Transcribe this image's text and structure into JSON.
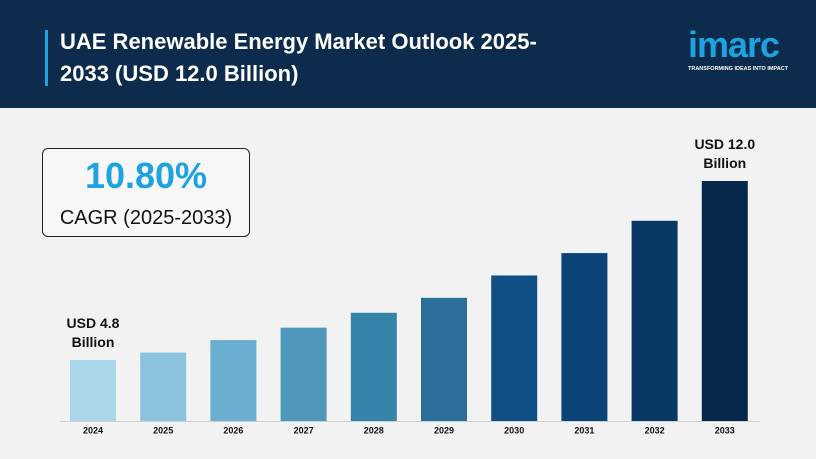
{
  "header": {
    "title": "UAE Renewable Energy Market Outlook 2025-2033 (USD 12.0 Billion)",
    "logo": "imarc",
    "tagline": "TRANSFORMING IDEAS INTO IMPACT"
  },
  "chart_data": {
    "type": "bar",
    "cagr": "10.80%",
    "cagr_label": "CAGR (2025-2033)",
    "categories": [
      "2024",
      "2025",
      "2026",
      "2027",
      "2028",
      "2029",
      "2030",
      "2031",
      "2032",
      "2033"
    ],
    "values": [
      4.8,
      5.1,
      5.6,
      6.1,
      6.7,
      7.3,
      8.2,
      9.1,
      10.4,
      12.0
    ],
    "value_labels": [
      "USD 4.8 Billion",
      null,
      null,
      null,
      null,
      null,
      null,
      null,
      null,
      "USD 12.0 Billion"
    ],
    "colors": [
      "#a9d6e8",
      "#8cc3dc",
      "#6aaed0",
      "#4f98bb",
      "#3483a8",
      "#2a6f98",
      "#0f4f86",
      "#0b4478",
      "#083863",
      "#06294b"
    ]
  }
}
